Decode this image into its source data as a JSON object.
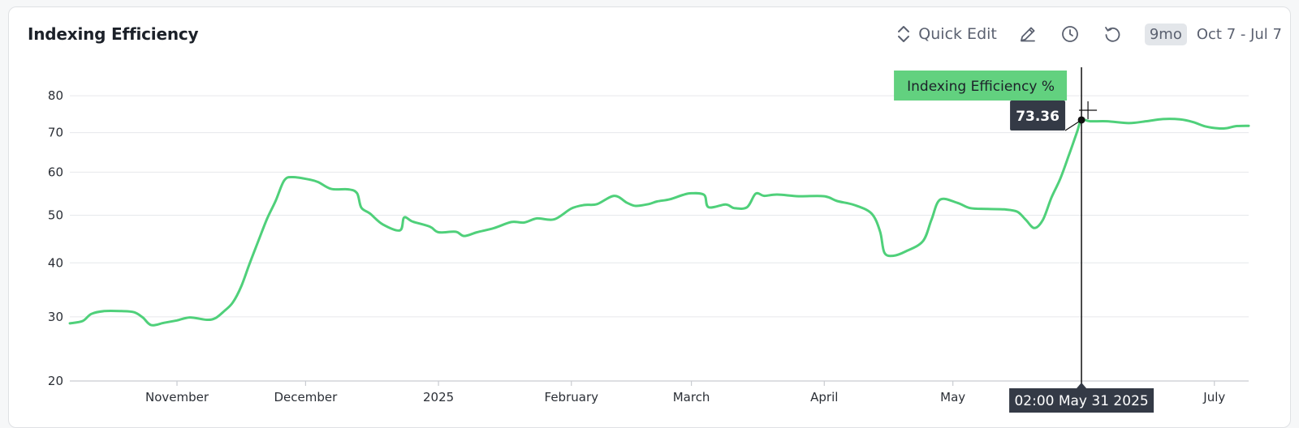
{
  "header": {
    "title": "Indexing Efficiency",
    "quick_edit_label": "Quick Edit",
    "range_badge": "9mo",
    "range_text": "Oct 7 - Jul 7",
    "icons": [
      "chevron-updown-icon",
      "pencil-icon",
      "clock-icon",
      "undo-icon"
    ]
  },
  "colors": {
    "series": "#4fd07a",
    "tooltip_series_bg": "#62d17f",
    "tooltip_dark_bg": "#343a46",
    "grid": "#e6e8eb"
  },
  "tooltip": {
    "series_label": "Indexing Efficiency %",
    "value_label": "73.36",
    "date_label": "02:00 May 31 2025"
  },
  "chart_data": {
    "type": "line",
    "title": "Indexing Efficiency",
    "xlabel": "",
    "ylabel": "",
    "y_scale": "sqrt",
    "ylim": [
      20,
      87
    ],
    "y_ticks": [
      20,
      30,
      40,
      50,
      60,
      70,
      80
    ],
    "xlim": [
      "2024-10-07",
      "2025-07-09"
    ],
    "x_ticks": [
      {
        "date": "2024-11-01",
        "label": "November"
      },
      {
        "date": "2024-12-01",
        "label": "December"
      },
      {
        "date": "2025-01-01",
        "label": "2025"
      },
      {
        "date": "2025-02-01",
        "label": "February"
      },
      {
        "date": "2025-03-01",
        "label": "March"
      },
      {
        "date": "2025-04-01",
        "label": "April"
      },
      {
        "date": "2025-05-01",
        "label": "May"
      },
      {
        "date": "2025-07-01",
        "label": "July"
      }
    ],
    "grid": true,
    "legend": "none",
    "series": [
      {
        "name": "Indexing Efficiency %",
        "points": [
          [
            "2024-10-07",
            28.9
          ],
          [
            "2024-10-10",
            29.3
          ],
          [
            "2024-10-12",
            30.5
          ],
          [
            "2024-10-15",
            31.0
          ],
          [
            "2024-10-19",
            31.0
          ],
          [
            "2024-10-22",
            30.8
          ],
          [
            "2024-10-24",
            29.9
          ],
          [
            "2024-10-26",
            28.6
          ],
          [
            "2024-10-29",
            29.0
          ],
          [
            "2024-11-01",
            29.4
          ],
          [
            "2024-11-04",
            29.9
          ],
          [
            "2024-11-08",
            29.5
          ],
          [
            "2024-11-10",
            29.8
          ],
          [
            "2024-11-12",
            31.0
          ],
          [
            "2024-11-14",
            32.5
          ],
          [
            "2024-11-16",
            35.5
          ],
          [
            "2024-11-18",
            40.0
          ],
          [
            "2024-11-20",
            44.5
          ],
          [
            "2024-11-22",
            49.2
          ],
          [
            "2024-11-24",
            53.2
          ],
          [
            "2024-11-26",
            58.0
          ],
          [
            "2024-11-28",
            58.8
          ],
          [
            "2024-12-02",
            58.2
          ],
          [
            "2024-12-04",
            57.6
          ],
          [
            "2024-12-07",
            56.0
          ],
          [
            "2024-12-11",
            55.9
          ],
          [
            "2024-12-13",
            55.0
          ],
          [
            "2024-12-14",
            51.7
          ],
          [
            "2024-12-16",
            50.4
          ],
          [
            "2024-12-19",
            48.0
          ],
          [
            "2024-12-23",
            46.7
          ],
          [
            "2024-12-24",
            49.5
          ],
          [
            "2024-12-26",
            48.6
          ],
          [
            "2024-12-30",
            47.5
          ],
          [
            "2025-01-01",
            46.3
          ],
          [
            "2025-01-05",
            46.4
          ],
          [
            "2025-01-07",
            45.5
          ],
          [
            "2025-01-10",
            46.3
          ],
          [
            "2025-01-14",
            47.2
          ],
          [
            "2025-01-18",
            48.5
          ],
          [
            "2025-01-21",
            48.4
          ],
          [
            "2025-01-24",
            49.3
          ],
          [
            "2025-01-28",
            49.1
          ],
          [
            "2025-02-01",
            51.5
          ],
          [
            "2025-02-04",
            52.3
          ],
          [
            "2025-02-07",
            52.5
          ],
          [
            "2025-02-11",
            54.4
          ],
          [
            "2025-02-14",
            52.8
          ],
          [
            "2025-02-16",
            52.1
          ],
          [
            "2025-02-19",
            52.5
          ],
          [
            "2025-02-21",
            53.1
          ],
          [
            "2025-02-24",
            53.6
          ],
          [
            "2025-02-27",
            54.6
          ],
          [
            "2025-03-01",
            55.0
          ],
          [
            "2025-03-04",
            54.6
          ],
          [
            "2025-03-05",
            51.8
          ],
          [
            "2025-03-09",
            52.4
          ],
          [
            "2025-03-11",
            51.6
          ],
          [
            "2025-03-14",
            51.8
          ],
          [
            "2025-03-16",
            54.9
          ],
          [
            "2025-03-18",
            54.4
          ],
          [
            "2025-03-21",
            54.7
          ],
          [
            "2025-03-26",
            54.3
          ],
          [
            "2025-04-01",
            54.3
          ],
          [
            "2025-04-04",
            53.2
          ],
          [
            "2025-04-08",
            52.3
          ],
          [
            "2025-04-12",
            50.4
          ],
          [
            "2025-04-14",
            46.5
          ],
          [
            "2025-04-15",
            42.1
          ],
          [
            "2025-04-17",
            41.4
          ],
          [
            "2025-04-20",
            42.3
          ],
          [
            "2025-04-24",
            44.4
          ],
          [
            "2025-04-26",
            49.0
          ],
          [
            "2025-04-28",
            53.5
          ],
          [
            "2025-05-02",
            52.8
          ],
          [
            "2025-05-05",
            51.6
          ],
          [
            "2025-05-09",
            51.4
          ],
          [
            "2025-05-13",
            51.3
          ],
          [
            "2025-05-16",
            50.8
          ],
          [
            "2025-05-18",
            49.0
          ],
          [
            "2025-05-20",
            47.2
          ],
          [
            "2025-05-22",
            49.0
          ],
          [
            "2025-05-24",
            54.0
          ],
          [
            "2025-05-26",
            58.3
          ],
          [
            "2025-05-28",
            64.0
          ],
          [
            "2025-05-30",
            70.3
          ],
          [
            "2025-05-31",
            73.36
          ],
          [
            "2025-06-02",
            73.0
          ],
          [
            "2025-06-06",
            73.0
          ],
          [
            "2025-06-11",
            72.5
          ],
          [
            "2025-06-15",
            73.0
          ],
          [
            "2025-06-19",
            73.6
          ],
          [
            "2025-06-23",
            73.5
          ],
          [
            "2025-06-26",
            72.8
          ],
          [
            "2025-06-29",
            71.6
          ],
          [
            "2025-07-02",
            71.1
          ],
          [
            "2025-07-04",
            71.2
          ],
          [
            "2025-07-06",
            71.7
          ],
          [
            "2025-07-09",
            71.8
          ]
        ]
      }
    ],
    "hover": {
      "date": "2025-05-31",
      "value": 73.36
    }
  }
}
